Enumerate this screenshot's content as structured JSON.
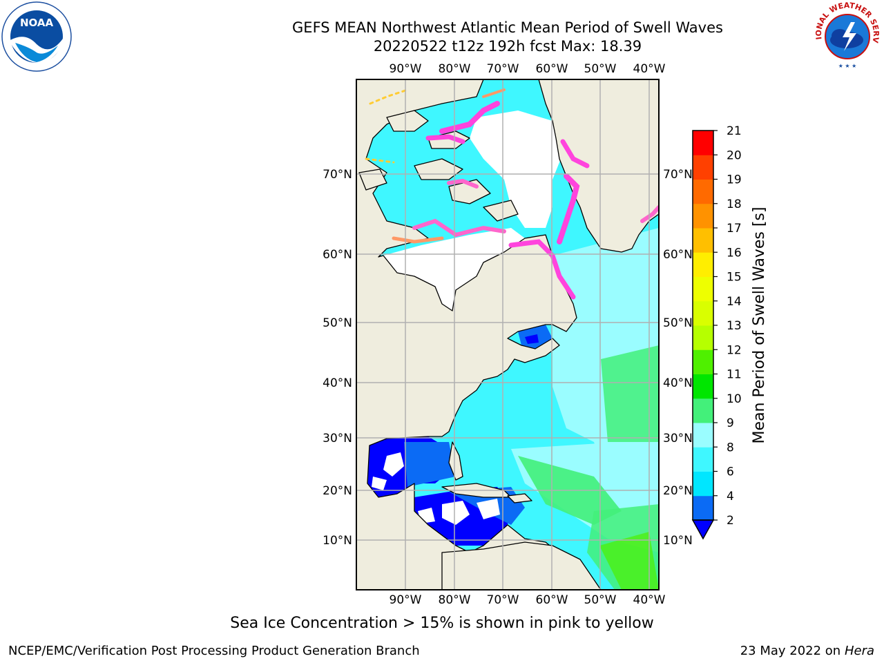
{
  "title": {
    "line1": "GEFS MEAN Northwest Atlantic Mean Period of Swell Waves",
    "line2": "20220522 t12z 192h fcst   Max: 18.39"
  },
  "logos": {
    "left": "noaa-logo",
    "left_text": "NOAA",
    "right": "national-weather-service-logo",
    "right_text": "NATIONAL WEATHER SERVICE"
  },
  "map": {
    "lon_labels": [
      "90°W",
      "80°W",
      "70°W",
      "60°W",
      "50°W",
      "40°W"
    ],
    "lat_labels": [
      "70°N",
      "60°N",
      "50°N",
      "40°N",
      "30°N",
      "20°N",
      "10°N"
    ],
    "land_color": "#efedde",
    "ocean_color": "#3ff7ff",
    "grid_color": "#b0b0b0"
  },
  "colorbar": {
    "label": "Mean Period of Swell Waves [s]",
    "ticks": [
      "2",
      "4",
      "6",
      "8",
      "9",
      "10",
      "11",
      "12",
      "13",
      "14",
      "15",
      "16",
      "17",
      "18",
      "19",
      "20",
      "21"
    ],
    "colors": [
      "#0b6bf5",
      "#00e6ff",
      "#3ff7ff",
      "#9afdff",
      "#43f07a",
      "#00e600",
      "#4ff000",
      "#b6ff00",
      "#d9ff00",
      "#eeff00",
      "#ffee00",
      "#ffbf00",
      "#ff9200",
      "#ff6a00",
      "#ff4000",
      "#ff0000"
    ],
    "under_color": "#0000ff"
  },
  "footer": {
    "sea_ice_note": "Sea Ice Concentration > 15% is shown in pink to yellow",
    "credit": "NCEP/EMC/Verification Post Processing Product Generation Branch",
    "date": "23 May 2022 on",
    "machine": "Hera"
  }
}
